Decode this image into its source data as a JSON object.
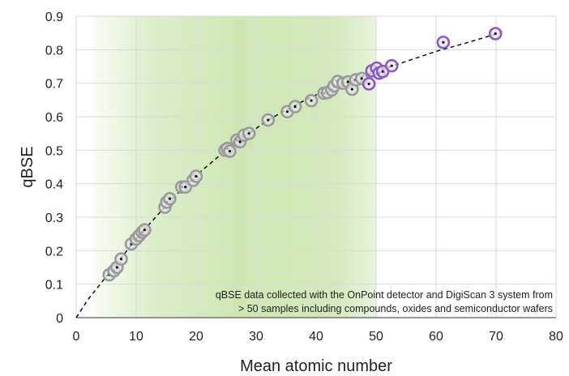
{
  "chart_data": {
    "type": "scatter",
    "xlabel": "Mean atomic number",
    "ylabel": "qBSE",
    "xlim": [
      0,
      80
    ],
    "ylim": [
      0,
      0.9
    ],
    "x_ticks": [
      "0",
      "10",
      "20",
      "30",
      "40",
      "50",
      "60",
      "70",
      "80"
    ],
    "y_ticks": [
      "0",
      "0.1",
      "0.2",
      "0.3",
      "0.4",
      "0.5",
      "0.6",
      "0.7",
      "0.8",
      "0.9"
    ],
    "grid": true,
    "shaded_region": {
      "x_start": 3,
      "x_end": 50,
      "color": "#cfe6b4"
    },
    "annotation": [
      "qBSE data collected with the OnPoint detector and DigiScan 3 system from",
      "> 50 samples including compounds, oxides and semiconductor wafers"
    ],
    "trend_line": {
      "style": "dashed",
      "color": "#000000",
      "points": [
        [
          0,
          0.0
        ],
        [
          2,
          0.055
        ],
        [
          4,
          0.1
        ],
        [
          6,
          0.145
        ],
        [
          8,
          0.19
        ],
        [
          10,
          0.235
        ],
        [
          12,
          0.275
        ],
        [
          14,
          0.315
        ],
        [
          16,
          0.355
        ],
        [
          18,
          0.39
        ],
        [
          20,
          0.425
        ],
        [
          22,
          0.455
        ],
        [
          24,
          0.485
        ],
        [
          26,
          0.515
        ],
        [
          28,
          0.54
        ],
        [
          30,
          0.565
        ],
        [
          32,
          0.59
        ],
        [
          35,
          0.62
        ],
        [
          38,
          0.648
        ],
        [
          40,
          0.665
        ],
        [
          43,
          0.688
        ],
        [
          46,
          0.71
        ],
        [
          50,
          0.735
        ],
        [
          55,
          0.765
        ],
        [
          60,
          0.795
        ],
        [
          65,
          0.82
        ],
        [
          70,
          0.847
        ],
        [
          71,
          0.853
        ]
      ]
    },
    "series": [
      {
        "marker_ring_colors": {
          "green_region": "#9a9a9a",
          "outside_region": "#8a5cc2"
        },
        "points": [
          [
            5.5,
            0.128
          ],
          [
            6.3,
            0.14
          ],
          [
            6.8,
            0.15
          ],
          [
            7.5,
            0.175
          ],
          [
            9.2,
            0.22
          ],
          [
            10.0,
            0.235
          ],
          [
            10.5,
            0.245
          ],
          [
            11.0,
            0.255
          ],
          [
            11.4,
            0.262
          ],
          [
            14.8,
            0.33
          ],
          [
            15.1,
            0.345
          ],
          [
            15.6,
            0.355
          ],
          [
            17.6,
            0.39
          ],
          [
            18.2,
            0.39
          ],
          [
            19.5,
            0.41
          ],
          [
            20.0,
            0.422
          ],
          [
            24.8,
            0.5
          ],
          [
            25.2,
            0.505
          ],
          [
            25.6,
            0.497
          ],
          [
            26.8,
            0.53
          ],
          [
            27.3,
            0.525
          ],
          [
            28.0,
            0.545
          ],
          [
            28.8,
            0.55
          ],
          [
            32.0,
            0.59
          ],
          [
            35.2,
            0.615
          ],
          [
            36.5,
            0.63
          ],
          [
            39.2,
            0.648
          ],
          [
            41.3,
            0.67
          ],
          [
            41.9,
            0.672
          ],
          [
            42.6,
            0.68
          ],
          [
            43.0,
            0.692
          ],
          [
            43.6,
            0.705
          ],
          [
            44.5,
            0.7
          ],
          [
            45.3,
            0.704
          ],
          [
            46.0,
            0.682
          ],
          [
            46.6,
            0.71
          ],
          [
            47.6,
            0.714
          ],
          [
            48.8,
            0.698
          ],
          [
            49.3,
            0.737
          ],
          [
            50.1,
            0.745
          ],
          [
            50.5,
            0.73
          ],
          [
            51.1,
            0.735
          ],
          [
            52.6,
            0.752
          ],
          [
            61.2,
            0.822
          ],
          [
            69.9,
            0.848
          ]
        ]
      }
    ]
  }
}
